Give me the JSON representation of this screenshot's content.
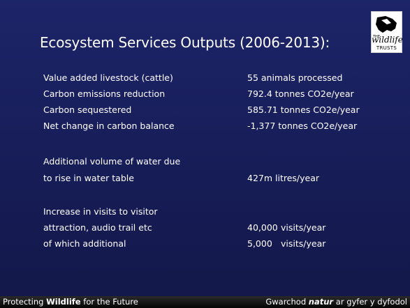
{
  "slide": {
    "title": "Ecosystem Services Outputs (2006-2013):",
    "logo": {
      "small": "THE",
      "main": "wildlife",
      "sub": "TRUSTS"
    },
    "rows": [
      {
        "label": "Value added livestock (cattle)",
        "value": "55 animals processed"
      },
      {
        "label": "Carbon emissions reduction",
        "value": "792.4 tonnes CO2e/year"
      },
      {
        "label": "Carbon sequestered",
        "value": "585.71 tonnes CO2e/year"
      },
      {
        "label": "Net change in carbon balance",
        "value": "-1,377 tonnes CO2e/year"
      },
      {
        "label": "Additional volume of water due"
      },
      {
        "label": "to rise in water table",
        "value": "427m litres/year"
      },
      {
        "label": "Increase in visits to visitor"
      },
      {
        "label": "attraction, audio trail etc",
        "value": "40,000",
        "unit": "visits/year"
      },
      {
        "label": "of which additional",
        "value": "5,000",
        "unit": "visits/year"
      }
    ],
    "footer": {
      "left": [
        "Protecting",
        "Wildlife",
        "for the Future"
      ],
      "right": [
        "Gwarchod",
        "natur",
        "ar gyfer y dyfodol"
      ]
    }
  }
}
